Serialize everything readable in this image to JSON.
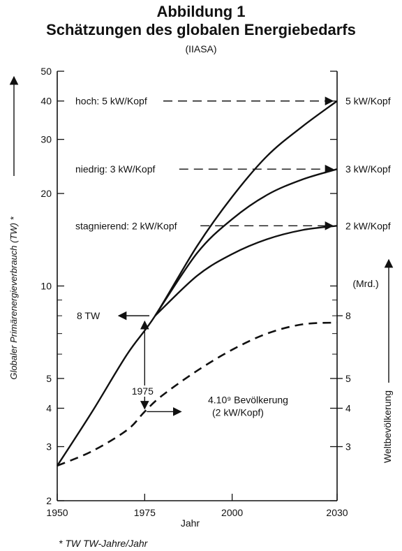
{
  "chart_data": {
    "type": "line",
    "title": "Abbildung 1",
    "subtitle": "Schätzungen des globalen Energiebedarfs",
    "source": "(IIASA)",
    "xlabel": "Jahr",
    "ylabel": "Globaler Primärenergieverbrauch (TW) *",
    "ylabel2": "Weltbevölkerung",
    "ylabel2_unit": "(Mrd.)",
    "footnote": "* TW  TW-Jahre/Jahr",
    "xlim": [
      1950,
      2030
    ],
    "ylim": [
      2,
      50
    ],
    "y_scale": "log",
    "x_ticks": [
      "1950",
      "1975",
      "2000",
      "2030"
    ],
    "y_ticks": [
      "2",
      "3",
      "4",
      "5",
      "10",
      "20",
      "30",
      "40",
      "50"
    ],
    "y2_ticks": [
      "3",
      "4",
      "5",
      "8"
    ],
    "legend": "none",
    "series": [
      {
        "name": "hoch: 5 kW/Kopf",
        "end_label": "5 kW/Kopf",
        "style": "solid",
        "x": [
          1950,
          1960,
          1970,
          1978,
          1990,
          2000,
          2010,
          2020,
          2030
        ],
        "y": [
          2.6,
          3.9,
          6.0,
          8.0,
          13.5,
          19.5,
          26.5,
          33.0,
          40.0
        ]
      },
      {
        "name": "niedrig: 3 kW/Kopf",
        "end_label": "3 kW/Kopf",
        "style": "solid",
        "x": [
          1978,
          1990,
          2000,
          2010,
          2020,
          2030
        ],
        "y": [
          8.0,
          12.8,
          16.5,
          19.8,
          22.2,
          24.0
        ]
      },
      {
        "name": "stagnierend: 2 kW/Kopf",
        "end_label": "2 kW/Kopf",
        "style": "solid",
        "x": [
          1978,
          1990,
          2000,
          2010,
          2020,
          2030
        ],
        "y": [
          8.0,
          10.8,
          12.7,
          14.2,
          15.2,
          15.7
        ]
      },
      {
        "name": "Bevölkerung",
        "style": "dashed",
        "axis": "right",
        "x": [
          1950,
          1960,
          1970,
          1975,
          1980,
          1990,
          2000,
          2010,
          2020,
          2030
        ],
        "y": [
          2.6,
          2.9,
          3.4,
          3.9,
          4.4,
          5.3,
          6.2,
          7.0,
          7.5,
          7.6
        ]
      }
    ],
    "annotations": [
      {
        "text": "8 TW",
        "arrow": "left"
      },
      {
        "text": "1975",
        "arrow": "up-down"
      },
      {
        "text": "4.10⁹ Bevölkerung",
        "arrow": "right"
      },
      {
        "text": "(2 kW/Kopf)"
      }
    ]
  }
}
